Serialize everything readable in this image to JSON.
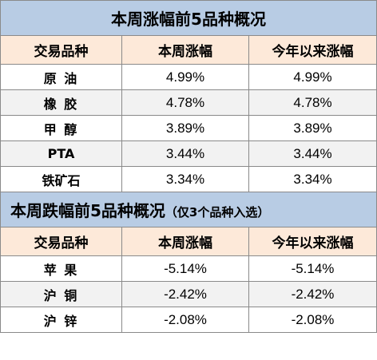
{
  "rise": {
    "title": "本周涨幅前5品种概况",
    "headers": [
      "交易品种",
      "本周涨幅",
      "今年以来涨幅"
    ],
    "rows": [
      {
        "name": "原 油",
        "week": "4.99%",
        "ytd": "4.99%"
      },
      {
        "name": "橡 胶",
        "week": "4.78%",
        "ytd": "4.78%"
      },
      {
        "name": "甲 醇",
        "week": "3.89%",
        "ytd": "3.89%"
      },
      {
        "name": "PTA",
        "week": "3.44%",
        "ytd": "3.44%"
      },
      {
        "name": "铁矿石",
        "week": "3.34%",
        "ytd": "3.34%"
      }
    ]
  },
  "fall": {
    "title": "本周跌幅前5品种概况",
    "note": "（仅3个品种入选）",
    "headers": [
      "交易品种",
      "本周涨幅",
      "今年以来涨幅"
    ],
    "rows": [
      {
        "name": "苹 果",
        "week": "-5.14%",
        "ytd": "-5.14%"
      },
      {
        "name": "沪 铜",
        "week": "-2.42%",
        "ytd": "-2.42%"
      },
      {
        "name": "沪 锌",
        "week": "-2.08%",
        "ytd": "-2.08%"
      }
    ]
  }
}
